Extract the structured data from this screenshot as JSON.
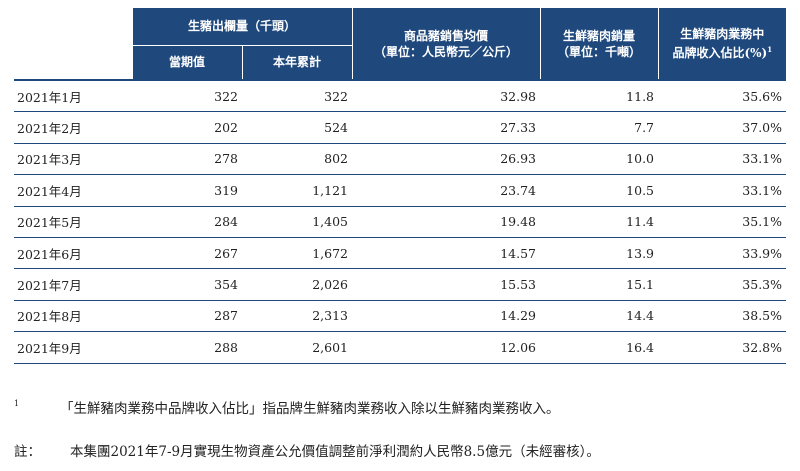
{
  "table": {
    "headers": {
      "slaughter": "生豬出欄量（千頭）",
      "current": "當期值",
      "cumulative": "本年累計",
      "price_line1": "商品豬銷售均價",
      "price_line2": "（單位：人民幣元／公斤）",
      "meat_line1": "生鮮豬肉銷量",
      "meat_line2": "（單位：千噸）",
      "brand_line1": "生鮮豬肉業務中",
      "brand_line2": "品牌收入佔比(%)",
      "brand_sup": "1"
    },
    "rows": [
      {
        "month": "2021年1月",
        "current": "322",
        "cumulative": "322",
        "price": "32.98",
        "meat": "11.8",
        "brand": "35.6%"
      },
      {
        "month": "2021年2月",
        "current": "202",
        "cumulative": "524",
        "price": "27.33",
        "meat": "7.7",
        "brand": "37.0%"
      },
      {
        "month": "2021年3月",
        "current": "278",
        "cumulative": "802",
        "price": "26.93",
        "meat": "10.0",
        "brand": "33.1%"
      },
      {
        "month": "2021年4月",
        "current": "319",
        "cumulative": "1,121",
        "price": "23.74",
        "meat": "10.5",
        "brand": "33.1%"
      },
      {
        "month": "2021年5月",
        "current": "284",
        "cumulative": "1,405",
        "price": "19.48",
        "meat": "11.4",
        "brand": "35.1%"
      },
      {
        "month": "2021年6月",
        "current": "267",
        "cumulative": "1,672",
        "price": "14.57",
        "meat": "13.9",
        "brand": "33.9%"
      },
      {
        "month": "2021年7月",
        "current": "354",
        "cumulative": "2,026",
        "price": "15.53",
        "meat": "15.1",
        "brand": "35.3%"
      },
      {
        "month": "2021年8月",
        "current": "287",
        "cumulative": "2,313",
        "price": "14.29",
        "meat": "14.4",
        "brand": "38.5%"
      },
      {
        "month": "2021年9月",
        "current": "288",
        "cumulative": "2,601",
        "price": "12.06",
        "meat": "16.4",
        "brand": "32.8%"
      }
    ]
  },
  "footnote": {
    "mark": "1",
    "text": "「生鮮豬肉業務中品牌收入佔比」指品牌生鮮豬肉業務收入除以生鮮豬肉業務收入。"
  },
  "note": {
    "label": "註：",
    "text": "本集團2021年7-9月實現生物資產公允價值調整前淨利潤約人民幣8.5億元（未經審核）。"
  },
  "colors": {
    "header_bg": "#1f497d",
    "header_text": "#ffffff",
    "rule": "#1f497d"
  }
}
